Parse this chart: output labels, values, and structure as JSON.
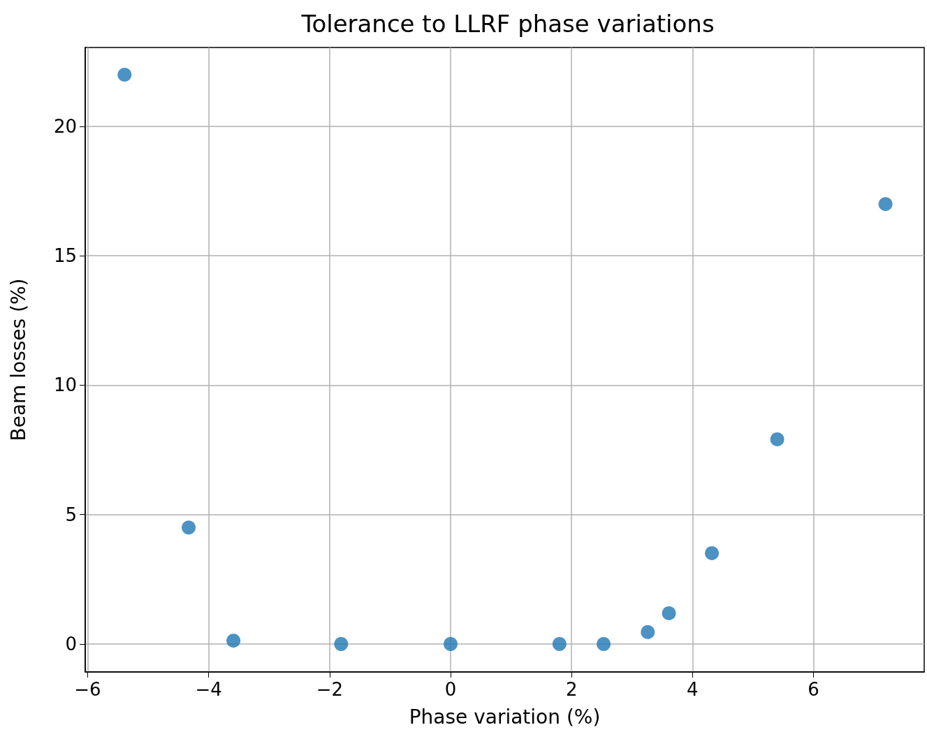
{
  "chart_data": {
    "type": "scatter",
    "title": "Tolerance to LLRF phase variations",
    "xlabel": "Phase variation (%)",
    "ylabel": "Beam losses (%)",
    "x": [
      -5.39,
      -4.33,
      -3.59,
      -1.81,
      0,
      1.8,
      2.53,
      3.26,
      3.61,
      4.32,
      5.4,
      7.19
    ],
    "series": [
      {
        "color": "#1f77b4",
        "values": [
          22.0,
          4.5,
          0.13,
          0,
          0,
          0,
          0,
          0.46,
          1.19,
          3.51,
          7.91,
          17.0
        ]
      }
    ],
    "xlim": [
      -6.04,
      7.83
    ],
    "ylim": [
      -1.08,
      23.05
    ],
    "xticks": [
      {
        "value": -6,
        "label": "−6"
      },
      {
        "value": -4,
        "label": "−4"
      },
      {
        "value": -2,
        "label": "−2"
      },
      0,
      2,
      4,
      6
    ],
    "yticks": [
      0,
      5,
      10,
      15,
      20
    ],
    "grid": true,
    "marker": "circle"
  }
}
